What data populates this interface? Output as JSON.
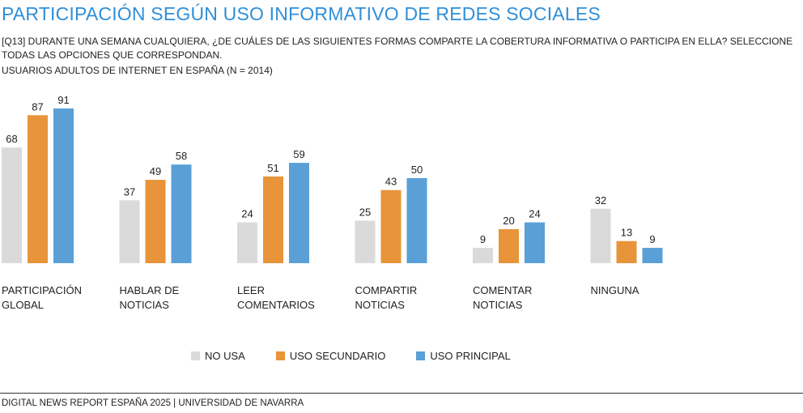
{
  "header": {
    "title": "PARTICIPACIÓN SEGÚN USO INFORMATIVO DE REDES SOCIALES",
    "question": "[Q13] DURANTE UNA SEMANA CUALQUIERA, ¿DE CUÁLES DE LAS SIGUIENTES FORMAS COMPARTE LA COBERTURA INFORMATIVA O PARTICIPA EN ELLA? SELECCIONE TODAS LAS OPCIONES QUE CORRESPONDAN.",
    "population": "USUARIOS ADULTOS DE INTERNET EN ESPAÑA (N = 2014)"
  },
  "footer": {
    "source": "DIGITAL NEWS REPORT ESPAÑA 2025 | UNIVERSIDAD DE NAVARRA"
  },
  "chart_data": {
    "type": "bar",
    "categories": [
      [
        "PARTICIPACIÓN",
        "GLOBAL"
      ],
      [
        "HABLAR DE",
        "NOTICIAS"
      ],
      [
        "LEER",
        "COMENTARIOS"
      ],
      [
        "COMPARTIR",
        "NOTICIAS"
      ],
      [
        "COMENTAR",
        "NOTICIAS"
      ],
      [
        "NINGUNA"
      ]
    ],
    "series": [
      {
        "name": "NO USA",
        "color": "#dadada",
        "values": [
          68,
          37,
          24,
          25,
          9,
          32
        ]
      },
      {
        "name": "USO SECUNDARIO",
        "color": "#e8943a",
        "values": [
          87,
          49,
          51,
          43,
          20,
          13
        ]
      },
      {
        "name": "USO PRINCIPAL",
        "color": "#5a9fd6",
        "values": [
          91,
          58,
          59,
          50,
          24,
          9
        ]
      }
    ],
    "ylim": [
      0,
      100
    ],
    "data_labels": true,
    "grid": false,
    "legend_position": "bottom"
  }
}
